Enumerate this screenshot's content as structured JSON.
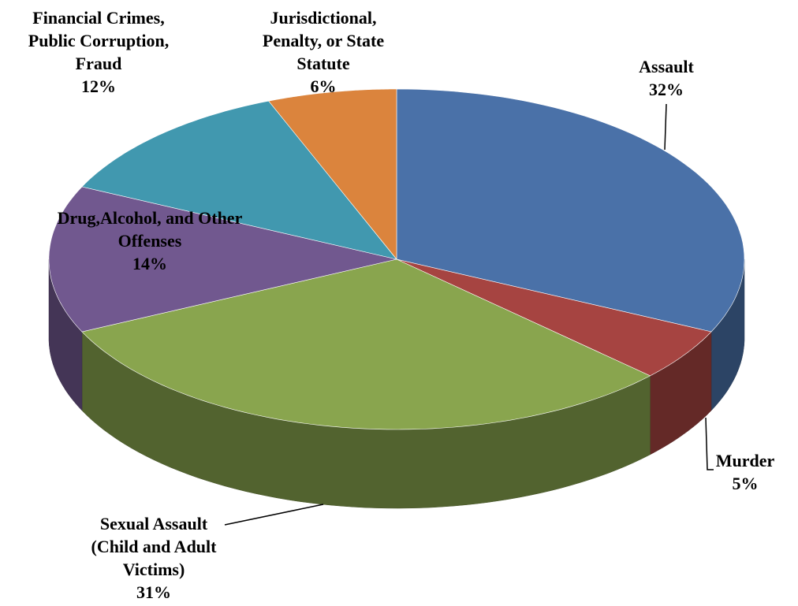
{
  "chart_data": {
    "type": "pie",
    "categories": [
      "Assault",
      "Murder",
      "Sexual Assault (Child and Adult Victims)",
      "Drug,Alcohol, and Other Offenses",
      "Financial Crimes, Public Corruption, Fraud",
      "Jurisdictional, Penalty, or State Statute"
    ],
    "values": [
      32,
      5,
      31,
      14,
      12,
      6
    ],
    "value_labels": [
      "32%",
      "5%",
      "31%",
      "14%",
      "12%",
      "6%"
    ],
    "colors": [
      "#4a71a8",
      "#a64441",
      "#89a54e",
      "#71588f",
      "#4198af",
      "#db843d"
    ]
  }
}
